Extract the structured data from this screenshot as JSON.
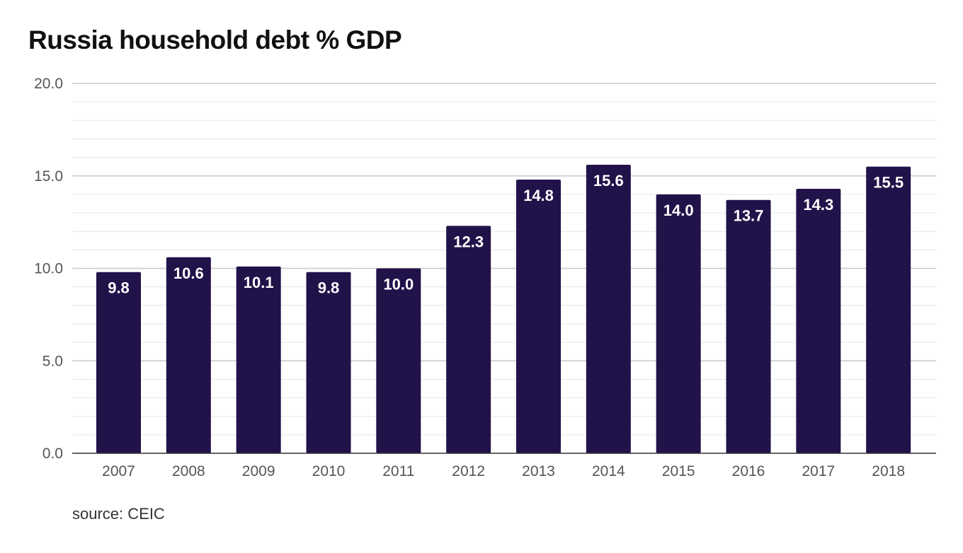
{
  "chart_data": {
    "type": "bar",
    "title": "Russia household debt % GDP",
    "xlabel": "",
    "ylabel": "",
    "categories": [
      "2007",
      "2008",
      "2009",
      "2010",
      "2011",
      "2012",
      "2013",
      "2014",
      "2015",
      "2016",
      "2017",
      "2018"
    ],
    "values": [
      9.8,
      10.6,
      10.1,
      9.8,
      10.0,
      12.3,
      14.8,
      15.6,
      14.0,
      13.7,
      14.3,
      15.5
    ],
    "data_labels": [
      "9.8",
      "10.6",
      "10.1",
      "9.8",
      "10.0",
      "12.3",
      "14.8",
      "15.6",
      "14.0",
      "13.7",
      "14.3",
      "15.5"
    ],
    "ylim": [
      0,
      20
    ],
    "yticks": [
      "0.0",
      "5.0",
      "10.0",
      "15.0",
      "20.0"
    ],
    "grid": true,
    "legend": "none",
    "bar_color": "#22124a"
  },
  "footer": {
    "source": "source: CEIC"
  }
}
